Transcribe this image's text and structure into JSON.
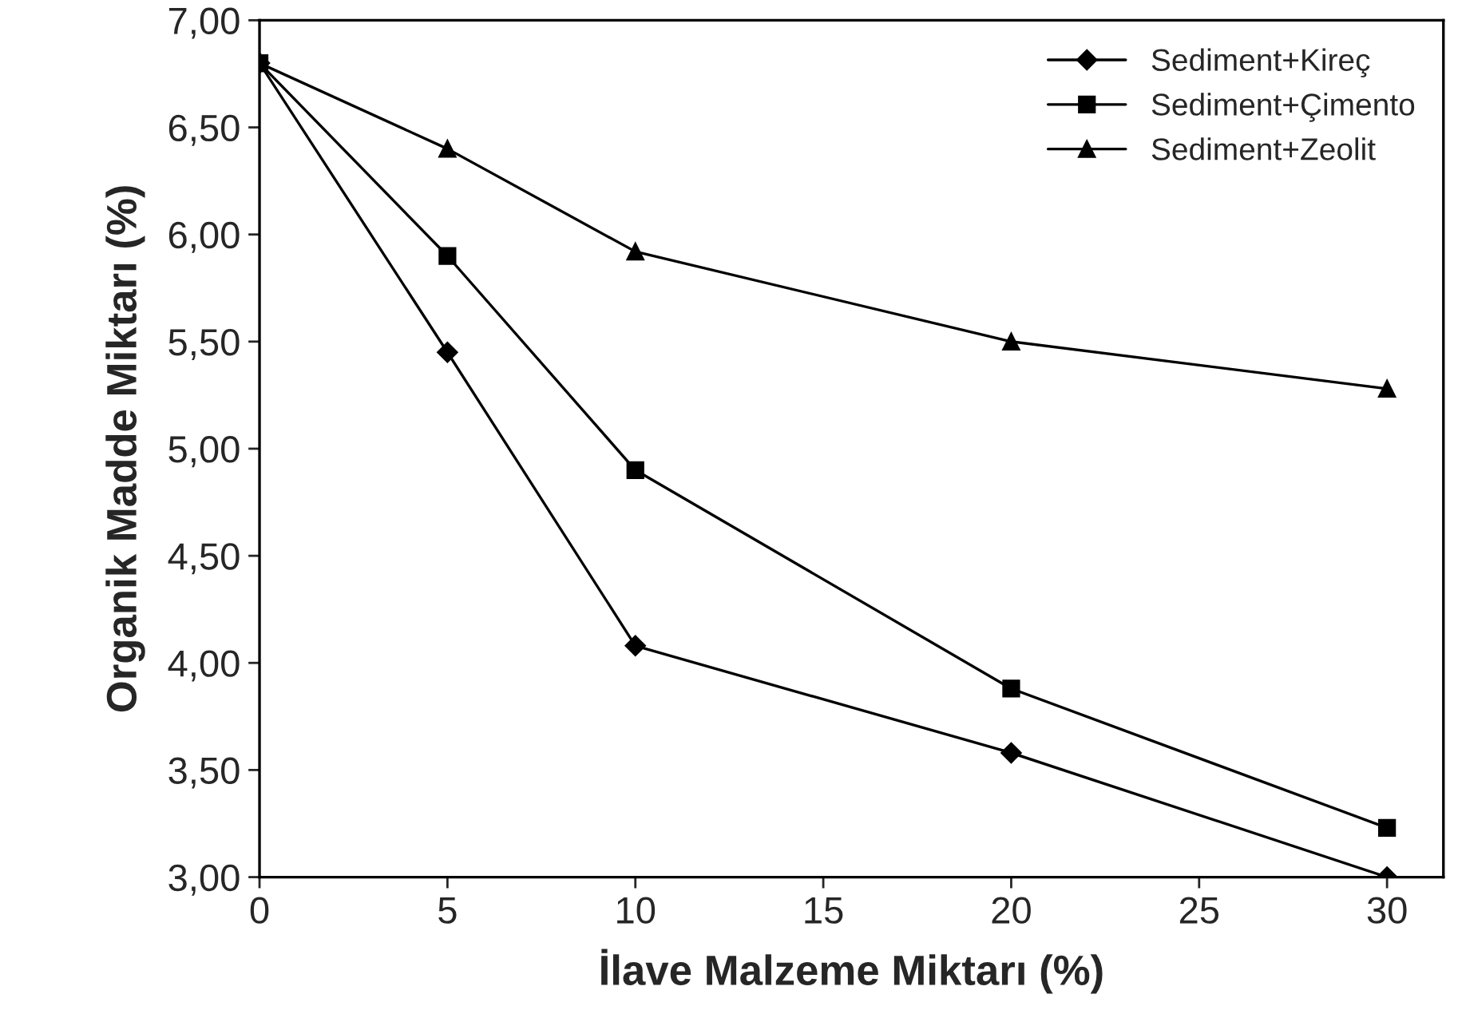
{
  "chart_data": {
    "type": "line",
    "xlabel": "İlave Malzeme Miktarı (%)",
    "ylabel": "Organik Madde Miktarı (%)",
    "x": [
      0,
      5,
      10,
      20,
      30
    ],
    "series": [
      {
        "name": "Sediment+Kireç",
        "color": "#000000",
        "marker": "diamond",
        "values": [
          6.8,
          5.45,
          4.08,
          3.58,
          3.0
        ]
      },
      {
        "name": "Sediment+Çimento",
        "color": "#000000",
        "marker": "square",
        "values": [
          6.8,
          5.9,
          4.9,
          3.88,
          3.23
        ]
      },
      {
        "name": "Sediment+Zeolit",
        "color": "#000000",
        "marker": "triangle",
        "values": [
          6.8,
          6.4,
          5.92,
          5.5,
          5.28
        ]
      }
    ],
    "xlim": [
      0,
      31.5
    ],
    "xticks": [
      0,
      5,
      10,
      15,
      20,
      25,
      30
    ],
    "ylim": [
      3,
      7
    ],
    "yticks": [
      {
        "value": 3,
        "label": "3,00"
      },
      {
        "value": 3.5,
        "label": "3,50"
      },
      {
        "value": 4,
        "label": "4,00"
      },
      {
        "value": 4.5,
        "label": "4,50"
      },
      {
        "value": 5,
        "label": "5,00"
      },
      {
        "value": 5.5,
        "label": "5,50"
      },
      {
        "value": 6,
        "label": "6,00"
      },
      {
        "value": 6.5,
        "label": "6,50"
      },
      {
        "value": 7,
        "label": "7,00"
      }
    ],
    "grid": false,
    "legend": "top right",
    "line_style": "solid"
  }
}
